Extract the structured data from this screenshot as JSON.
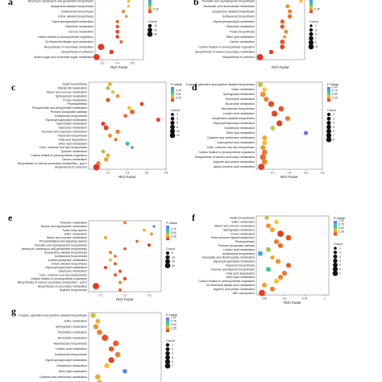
{
  "chart_data": [
    {
      "type": "scatter",
      "panel": "a",
      "xlabel": "Rich Factor",
      "xticks": [
        0.2,
        0.4,
        0.6
      ],
      "xlim": [
        0.1,
        0.75
      ],
      "color_legend": {
        "title": "",
        "ticks": [
          0.25
        ]
      },
      "size_legend": {
        "title": "Count",
        "values": [
          10,
          20,
          30
        ]
      },
      "categories": [
        "Pentose phosphate pathway",
        "Neomycin, kanamycin and gentamicin biosynthesis",
        "Isoquinoline alkaloid biosynthesis",
        "Isoflavonoid biosynthesis",
        "Indole alkaloid biosynthesis",
        "Glycerophospholipid metabolism",
        "Galactose metabolism",
        "Carbon metabolism",
        "Carbon fixation in photosynthetic organisms",
        "C5-Branched dibasic acid metabolism",
        "Biosynthesis of secondary metabolites",
        "Biosynthesis of cofactors",
        "Amino sugar and nucleotide sugar metabolism"
      ],
      "points": [
        {
          "x": 0.55,
          "count": 3,
          "p": 0.3
        },
        {
          "x": 0.55,
          "count": 3,
          "p": 0.35
        },
        {
          "x": 0.55,
          "count": 2,
          "p": 0.4
        },
        {
          "x": 0.48,
          "count": 4,
          "p": 0.2
        },
        {
          "x": 0.52,
          "count": 3,
          "p": 0.25
        },
        {
          "x": 0.4,
          "count": 5,
          "p": 0.15
        },
        {
          "x": 0.4,
          "count": 6,
          "p": 0.1
        },
        {
          "x": 0.4,
          "count": 8,
          "p": 0.08
        },
        {
          "x": 0.4,
          "count": 7,
          "p": 0.06
        },
        {
          "x": 0.45,
          "count": 4,
          "p": 0.12
        },
        {
          "x": 0.18,
          "count": 32,
          "p": 0.02
        },
        {
          "x": 0.32,
          "count": 12,
          "p": 0.05
        },
        {
          "x": 0.12,
          "count": 30,
          "p": 0.03
        }
      ]
    },
    {
      "type": "scatter",
      "panel": "b",
      "xlabel": "Rich Factor",
      "xticks": [],
      "xlim": [
        0.1,
        0.75
      ],
      "color_legend": {
        "title": "",
        "ticks": [
          0.25
        ]
      },
      "size_legend": {
        "title": "Count",
        "values": [
          1,
          3,
          5,
          7,
          9,
          11
        ]
      },
      "categories": [
        "Pentose phosphate pathway",
        "Penicillin and cephalosporin biosynthesis",
        "Nicotinate and nicotinamide metabolism",
        "Isoquinoline alkaloid biosynthesis",
        "Isoflavonoid biosynthesis",
        "Glycerophospholipid metabolism",
        "Galactose metabolism",
        "Folate biosynthesis",
        "Ether lipid metabolism",
        "Carbon metabolism",
        "Carbon fixation in photosynthetic organisms",
        "Biosynthesis of various secondary metabolites",
        "Biosynthesis of cofactors"
      ],
      "points": [
        {
          "x": 0.62,
          "count": 3,
          "p": 0.3
        },
        {
          "x": 0.7,
          "count": 2,
          "p": 0.35
        },
        {
          "x": 0.52,
          "count": 3,
          "p": 0.25
        },
        {
          "x": 0.55,
          "count": 3,
          "p": 0.2
        },
        {
          "x": 0.55,
          "count": 4,
          "p": 0.18
        },
        {
          "x": 0.45,
          "count": 4,
          "p": 0.15
        },
        {
          "x": 0.45,
          "count": 4,
          "p": 0.12
        },
        {
          "x": 0.5,
          "count": 3,
          "p": 0.22
        },
        {
          "x": 0.48,
          "count": 2,
          "p": 0.28
        },
        {
          "x": 0.45,
          "count": 5,
          "p": 0.1
        },
        {
          "x": 0.45,
          "count": 5,
          "p": 0.08
        },
        {
          "x": 0.3,
          "count": 4,
          "p": 0.05
        },
        {
          "x": 0.15,
          "count": 11,
          "p": 0.02
        }
      ]
    },
    {
      "type": "scatter",
      "panel": "c",
      "xlabel": "Rich Factor",
      "xticks": [
        0.2,
        0.4,
        0.6,
        0.8
      ],
      "xlim": [
        0.0,
        0.8
      ],
      "color_legend": {
        "title": "P-Value",
        "ticks": [
          0.25,
          0.5,
          0.75
        ]
      },
      "size_legend": {
        "title": "Count",
        "values": [
          2,
          4,
          6,
          8,
          10,
          12
        ]
      },
      "categories": [
        "Zeatin biosynthesis",
        "Vitamin B6 metabolism",
        "Starch and sucrose metabolism",
        "Sphingolipid metabolism",
        "Purine metabolism",
        "Photosynthesis",
        "Phosphonate and phosphinate metabolism",
        "Pentose phosphate pathway",
        "Isoflavonoid biosynthesis",
        "Glycerophospholipid metabolism",
        "Glycerolipid metabolism",
        "Galactose metabolism",
        "Fructose and mannose metabolism",
        "Flavonoid biosynthesis",
        "Fatty acid degradation",
        "Ether lipid metabolism",
        "Cutin, suberine and wax biosynthesis",
        "Tyrosine metabolism",
        "Carbon fixation in photosynthetic organisms",
        "Carbon metabolism",
        "Biosynthesis of various secondary metabolites - part 2",
        "Biosynthesis of cofactors"
      ],
      "points": [
        {
          "x": 0.22,
          "count": 3,
          "p": 0.3
        },
        {
          "x": 0.2,
          "count": 3,
          "p": 0.45
        },
        {
          "x": 0.25,
          "count": 2,
          "p": 0.4
        },
        {
          "x": 0.3,
          "count": 3,
          "p": 0.25
        },
        {
          "x": 0.2,
          "count": 4,
          "p": 0.1
        },
        {
          "x": 0.55,
          "count": 3,
          "p": 0.05
        },
        {
          "x": 0.42,
          "count": 3,
          "p": 0.35
        },
        {
          "x": 0.45,
          "count": 5,
          "p": 0.12
        },
        {
          "x": 0.38,
          "count": 3,
          "p": 0.15
        },
        {
          "x": 0.72,
          "count": 4,
          "p": 0.08
        },
        {
          "x": 0.15,
          "count": 4,
          "p": 0.06
        },
        {
          "x": 0.18,
          "count": 6,
          "p": 0.05
        },
        {
          "x": 0.3,
          "count": 4,
          "p": 0.2
        },
        {
          "x": 0.22,
          "count": 3,
          "p": 0.22
        },
        {
          "x": 0.28,
          "count": 2,
          "p": 0.18
        },
        {
          "x": 0.4,
          "count": 4,
          "p": 0.6
        },
        {
          "x": 0.45,
          "count": 1,
          "p": 0.9
        },
        {
          "x": 0.15,
          "count": 3,
          "p": 0.45
        },
        {
          "x": 0.2,
          "count": 3,
          "p": 0.3
        },
        {
          "x": 0.18,
          "count": 4,
          "p": 0.28
        },
        {
          "x": 0.1,
          "count": 4,
          "p": 0.2
        },
        {
          "x": 0.08,
          "count": 12,
          "p": 0.02
        }
      ]
    },
    {
      "type": "scatter",
      "panel": "d",
      "xlabel": "Rich Factor",
      "xticks": [
        0.2,
        0.4,
        0.6,
        0.8
      ],
      "xlim": [
        0.0,
        0.8
      ],
      "color_legend": {
        "title": "P-Value",
        "ticks": [
          0.25,
          0.5,
          0.75,
          1.0
        ]
      },
      "size_legend": {
        "title": "Count",
        "values": [
          2,
          3,
          4,
          5,
          6,
          7,
          8
        ]
      },
      "categories": [
        "Tropane, piperidine and pyridine alkaloid biosynthesis",
        "Sulfur metabolism",
        "Sphingolipid metabolism",
        "Pyrimidine metabolism",
        "Nucleotide metabolism",
        "Monobactam biosynthesis",
        "Linoleic acid metabolism",
        "Isoquinoline alkaloid biosynthesis",
        "Glycerophospholipid metabolism",
        "Glutathione metabolism",
        "Ether lipid metabolism",
        "Cysteine and methionine metabolism",
        "Cyanoamino acid metabolism",
        "Cutin, suberine and wax biosynthesis",
        "Carbon fixation in photosynthetic organisms",
        "Biosynthesis of various secondary metabolites",
        "Arginine and proline metabolism",
        "alpha-Linolenic acid metabolism"
      ],
      "points": [
        {
          "x": 0.05,
          "count": 3,
          "p": 0.4
        },
        {
          "x": 0.1,
          "count": 2,
          "p": 0.35
        },
        {
          "x": 0.08,
          "count": 4,
          "p": 0.25
        },
        {
          "x": 0.12,
          "count": 3,
          "p": 0.2
        },
        {
          "x": 0.18,
          "count": 5,
          "p": 0.08
        },
        {
          "x": 0.3,
          "count": 4,
          "p": 0.1
        },
        {
          "x": 0.22,
          "count": 5,
          "p": 0.06
        },
        {
          "x": 0.38,
          "count": 3,
          "p": 0.2
        },
        {
          "x": 0.28,
          "count": 5,
          "p": 0.05
        },
        {
          "x": 0.2,
          "count": 3,
          "p": 0.4
        },
        {
          "x": 0.6,
          "count": 2,
          "p": 0.95
        },
        {
          "x": 0.1,
          "count": 3,
          "p": 0.3
        },
        {
          "x": 0.1,
          "count": 3,
          "p": 0.35
        },
        {
          "x": 0.08,
          "count": 3,
          "p": 0.25
        },
        {
          "x": 0.1,
          "count": 4,
          "p": 0.2
        },
        {
          "x": 0.08,
          "count": 5,
          "p": 0.15
        },
        {
          "x": 0.1,
          "count": 4,
          "p": 0.22
        },
        {
          "x": 0.06,
          "count": 6,
          "p": 0.04
        }
      ]
    },
    {
      "type": "scatter",
      "panel": "e",
      "xlabel": "Rich Factor",
      "xticks": [
        0.1,
        0.2,
        0.3
      ],
      "xlim": [
        0.05,
        0.35
      ],
      "color_legend": {
        "title": "P-Value",
        "ticks": [
          0.25,
          0.5,
          0.75
        ]
      },
      "size_legend": {
        "title": "Count",
        "values": [
          5,
          10,
          15,
          20
        ]
      },
      "categories": [
        "Thiamine metabolism",
        "Taurine and hypotaurine metabolism",
        "Sulfur relay system",
        "Sulfur metabolism",
        "Starch and sucrose metabolism",
        "Phosphatidylinositol signaling system",
        "Penicillin and cephalosporin biosynthesis",
        "Neomycin, kanamycin and gentamicin biosynthesis",
        "Isoquinoline alkaloid biosynthesis",
        "Isoflavonoid biosynthesis",
        "Inositol phosphate metabolism",
        "Indole alkaloid biosynthesis",
        "Glycerophospholipid metabolism",
        "Galactose metabolism",
        "Cutin, suberine and wax biosynthesis",
        "Carbon fixation in photosynthetic organisms",
        "Biosynthesis of various secondary metabolites - part 2",
        "Biosynthesis of secondary metabolites",
        "Arginine biosynthesis"
      ],
      "points": [
        {
          "x": 0.2,
          "count": 2,
          "p": 0.2
        },
        {
          "x": 0.32,
          "count": 1,
          "p": 0.95
        },
        {
          "x": 0.28,
          "count": 2,
          "p": 0.3
        },
        {
          "x": 0.31,
          "count": 2,
          "p": 0.25
        },
        {
          "x": 0.12,
          "count": 3,
          "p": 0.3
        },
        {
          "x": 0.25,
          "count": 2,
          "p": 0.15
        },
        {
          "x": 0.3,
          "count": 3,
          "p": 0.05
        },
        {
          "x": 0.2,
          "count": 2,
          "p": 0.12
        },
        {
          "x": 0.14,
          "count": 3,
          "p": 0.22
        },
        {
          "x": 0.16,
          "count": 2,
          "p": 0.18
        },
        {
          "x": 0.14,
          "count": 3,
          "p": 0.35
        },
        {
          "x": 0.16,
          "count": 2,
          "p": 0.08
        },
        {
          "x": 0.12,
          "count": 3,
          "p": 0.06
        },
        {
          "x": 0.18,
          "count": 3,
          "p": 0.1
        },
        {
          "x": 0.16,
          "count": 3,
          "p": 0.12
        },
        {
          "x": 0.2,
          "count": 4,
          "p": 0.08
        },
        {
          "x": 0.18,
          "count": 3,
          "p": 0.22
        },
        {
          "x": 0.08,
          "count": 20,
          "p": 0.02
        },
        {
          "x": 0.18,
          "count": 3,
          "p": 0.14
        }
      ]
    },
    {
      "type": "scatter",
      "panel": "f",
      "xlabel": "Rich Factor",
      "xticks": [
        0.25,
        0.5,
        0.75,
        1.0
      ],
      "xlim": [
        0.15,
        1.05
      ],
      "color_legend": {
        "title": "P-Value",
        "ticks": [
          0.25,
          0.5,
          0.75,
          1.0
        ]
      },
      "size_legend": {
        "title": "Count",
        "values": [
          1,
          2,
          3,
          4,
          5,
          6,
          7
        ]
      },
      "categories": [
        "Zeatin biosynthesis",
        "Sulfur metabolism",
        "Starch and sucrose metabolism",
        "Sphingolipid metabolism",
        "Purine metabolism",
        "Plant hormone signal transduction",
        "Photosynthesis",
        "Pentose phosphate pathway",
        "Linoleic acid metabolism",
        "Isoflavonoid biosynthesis",
        "Glyoxylate and dicarboxylate metabolism",
        "Glycerophospholipid metabolism",
        "Flavonoid biosynthesis",
        "Flavone and flavonol biosynthesis",
        "Fatty acid degradation",
        "Ether lipid metabolism",
        "Carbon fixation in photosynthetic organisms",
        "C5-Branched dibasic acid metabolism",
        "Arginine and proline metabolism",
        "ABC transporters"
      ],
      "points": [
        {
          "x": 0.28,
          "count": 2,
          "p": 0.4
        },
        {
          "x": 0.4,
          "count": 2,
          "p": 0.35
        },
        {
          "x": 0.3,
          "count": 3,
          "p": 0.25
        },
        {
          "x": 0.35,
          "count": 3,
          "p": 0.3
        },
        {
          "x": 0.45,
          "count": 6,
          "p": 0.04
        },
        {
          "x": 0.55,
          "count": 4,
          "p": 0.1
        },
        {
          "x": 0.4,
          "count": 3,
          "p": 0.2
        },
        {
          "x": 0.45,
          "count": 3,
          "p": 0.15
        },
        {
          "x": 0.3,
          "count": 3,
          "p": 0.45
        },
        {
          "x": 0.2,
          "count": 3,
          "p": 0.8
        },
        {
          "x": 0.35,
          "count": 2,
          "p": 0.3
        },
        {
          "x": 0.42,
          "count": 3,
          "p": 0.25
        },
        {
          "x": 0.55,
          "count": 3,
          "p": 0.12
        },
        {
          "x": 0.3,
          "count": 3,
          "p": 0.6
        },
        {
          "x": 0.5,
          "count": 3,
          "p": 0.18
        },
        {
          "x": 0.45,
          "count": 3,
          "p": 0.22
        },
        {
          "x": 0.4,
          "count": 3,
          "p": 0.35
        },
        {
          "x": 0.25,
          "count": 3,
          "p": 0.28
        },
        {
          "x": 0.35,
          "count": 3,
          "p": 0.2
        },
        {
          "x": 0.22,
          "count": 6,
          "p": 0.05
        }
      ]
    },
    {
      "type": "scatter",
      "panel": "g",
      "xlabel": "",
      "xticks": [],
      "xlim": [
        0.0,
        0.8
      ],
      "color_legend": {
        "title": "P-Value",
        "ticks": [
          0.25,
          0.5,
          0.75,
          1.0
        ]
      },
      "size_legend": {
        "title": "Count",
        "values": [
          2,
          3,
          4,
          5,
          6,
          7
        ]
      },
      "categories": [
        "Tropane, piperidine and pyridine alkaloid biosynthesis",
        "Sulfur metabolism",
        "Sphingolipid metabolism",
        "Pyrimidine metabolism",
        "Nucleotide metabolism",
        "Monobactam biosynthesis",
        "Linoleic acid metabolism",
        "Isoflavonoid biosynthesis",
        "Glycerophospholipid metabolism",
        "Glutathione metabolism",
        "Ether lipid metabolism",
        "Cysteine and methionine metabolism",
        "Cyanoamino acid metabolism"
      ],
      "points": [
        {
          "x": 0.05,
          "count": 3,
          "p": 0.4
        },
        {
          "x": 0.1,
          "count": 2,
          "p": 0.3
        },
        {
          "x": 0.08,
          "count": 3,
          "p": 0.25
        },
        {
          "x": 0.12,
          "count": 3,
          "p": 0.2
        },
        {
          "x": 0.18,
          "count": 5,
          "p": 0.08
        },
        {
          "x": 0.3,
          "count": 4,
          "p": 0.12
        },
        {
          "x": 0.25,
          "count": 3,
          "p": 0.1
        },
        {
          "x": 0.32,
          "count": 3,
          "p": 0.2
        },
        {
          "x": 0.25,
          "count": 4,
          "p": 0.05
        },
        {
          "x": 0.2,
          "count": 3,
          "p": 0.35
        },
        {
          "x": 0.4,
          "count": 2,
          "p": 0.9
        },
        {
          "x": 0.1,
          "count": 3,
          "p": 0.3
        },
        {
          "x": 0.12,
          "count": 3,
          "p": 0.4
        }
      ]
    }
  ],
  "colors": {
    "low_p": "#e8291c",
    "mid_p": "#f6c02a",
    "high_mid_p": "#3fd17a",
    "high_p": "#7a5cff",
    "text": "#222222"
  }
}
